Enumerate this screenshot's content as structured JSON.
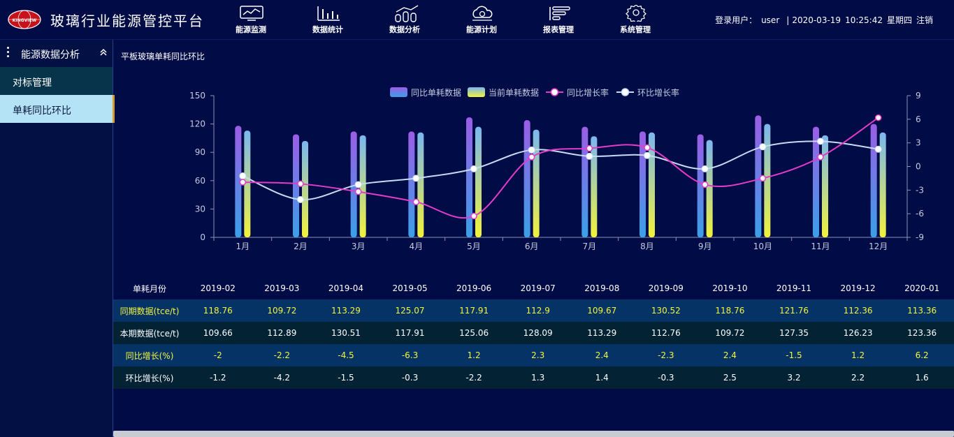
{
  "app": {
    "logo_text": "KINGVIEW",
    "title": "玻璃行业能源管控平台"
  },
  "nav": [
    {
      "label": "能源监测",
      "icon": "monitor-chart-icon"
    },
    {
      "label": "数据统计",
      "icon": "bar-stats-icon"
    },
    {
      "label": "数据分析",
      "icon": "trend-analysis-icon"
    },
    {
      "label": "能源计划",
      "icon": "cloud-plan-icon"
    },
    {
      "label": "报表管理",
      "icon": "report-icon"
    },
    {
      "label": "系统管理",
      "icon": "gear-icon"
    }
  ],
  "user": {
    "login_label": "登录用户：",
    "username": "user",
    "separator": "|",
    "date": "2020-03-19",
    "time": "10:25:42",
    "weekday": "星期四",
    "logout": "注销"
  },
  "sidebar": {
    "section_title": "能源数据分析",
    "items": [
      {
        "label": "对标管理"
      },
      {
        "label": "单耗同比环比"
      }
    ]
  },
  "panel": {
    "title": "平板玻璃单耗同比环比"
  },
  "colors": {
    "bar_prev_top": "#9b5de5",
    "bar_prev_bottom": "#3aa0e8",
    "bar_cur_top": "#7ab7f0",
    "bar_cur_bottom": "#f2f23a",
    "yoy_line": "#e23cc8",
    "mom_line": "#c6dcf2",
    "axis_text": "#c5cbe0"
  },
  "chart_data": {
    "type": "bar",
    "title": "",
    "categories": [
      "1月",
      "2月",
      "3月",
      "4月",
      "5月",
      "6月",
      "7月",
      "8月",
      "9月",
      "10月",
      "11月",
      "12月"
    ],
    "series": [
      {
        "name": "同比单耗数据",
        "kind": "bar",
        "axis": "left",
        "values": [
          118,
          109,
          112,
          112,
          127,
          124,
          117,
          112,
          109,
          129,
          117,
          120
        ]
      },
      {
        "name": "当前单耗数据",
        "kind": "bar",
        "axis": "left",
        "values": [
          113,
          102,
          108,
          111,
          117,
          114,
          107,
          111,
          103,
          120,
          108,
          111
        ]
      },
      {
        "name": "同比增长率",
        "kind": "line",
        "axis": "right",
        "values": [
          -2,
          -2.2,
          -3.2,
          -4.5,
          -6.3,
          1.2,
          2.3,
          2.4,
          -2.3,
          -1.5,
          1.2,
          6.2
        ]
      },
      {
        "name": "环比增长率",
        "kind": "line",
        "axis": "right",
        "values": [
          -1.2,
          -4.2,
          -2.3,
          -1.5,
          -0.3,
          2.1,
          1.3,
          1.4,
          -0.3,
          2.5,
          3.2,
          2.2
        ]
      }
    ],
    "ylim_left": [
      0,
      150
    ],
    "yticks_left": [
      "0",
      "30",
      "60",
      "90",
      "120",
      "150"
    ],
    "ylim_right": [
      -9,
      9
    ],
    "yticks_right": [
      "-9",
      "-6",
      "-3",
      "0",
      "3",
      "6",
      "9"
    ],
    "legend_position": "top-center"
  },
  "table": {
    "row_labels": [
      "单耗月份",
      "同期数据(tce/t)",
      "本期数据(tce/t)",
      "同比增长(%)",
      "环比增长(%)"
    ],
    "months": [
      "2019-02",
      "2019-03",
      "2019-04",
      "2019-05",
      "2019-06",
      "2019-07",
      "2019-08",
      "2019-09",
      "2019-10",
      "2019-11",
      "2019-12",
      "2020-01"
    ],
    "prev_period": [
      "118.76",
      "109.72",
      "113.29",
      "125.07",
      "117.91",
      "112.9",
      "109.67",
      "130.52",
      "118.76",
      "121.76",
      "112.36",
      "113.36"
    ],
    "cur_period": [
      "109.66",
      "112.89",
      "130.51",
      "117.91",
      "125.06",
      "128.09",
      "113.29",
      "112.76",
      "109.72",
      "127.35",
      "126.23",
      "123.36"
    ],
    "yoy": [
      "-2",
      "-2.2",
      "-4.5",
      "-6.3",
      "1.2",
      "2.3",
      "2.4",
      "-2.3",
      "2.4",
      "-1.5",
      "1.2",
      "6.2"
    ],
    "mom": [
      "-1.2",
      "-4.2",
      "-1.5",
      "-0.3",
      "-2.2",
      "1.3",
      "1.4",
      "-0.3",
      "2.5",
      "3.2",
      "2.2",
      "1.6"
    ]
  }
}
